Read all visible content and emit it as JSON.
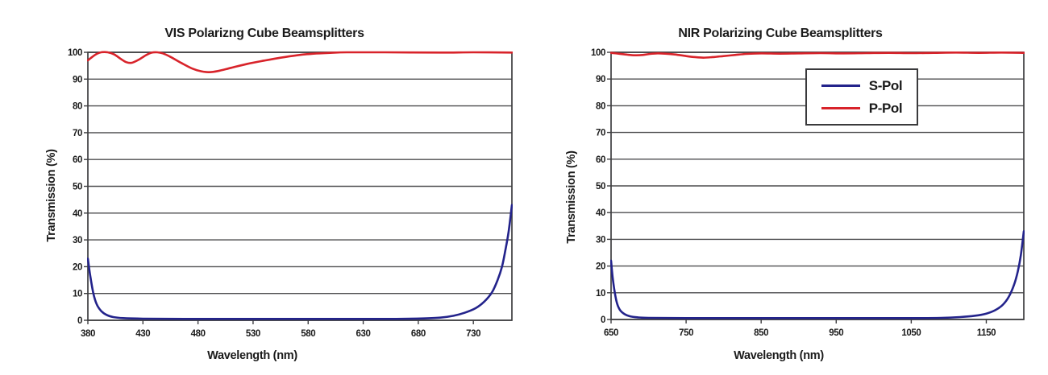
{
  "chart_data": [
    {
      "type": "line",
      "title": "VIS Polarizng Cube Beamsplitters",
      "xlabel": "Wavelength (nm)",
      "ylabel": "Transmission (%)",
      "x_range": [
        380,
        765
      ],
      "y_range": [
        0,
        100
      ],
      "x_ticks": [
        380,
        430,
        480,
        530,
        580,
        630,
        680,
        730
      ],
      "y_ticks": [
        0,
        10,
        20,
        30,
        40,
        50,
        60,
        70,
        80,
        90,
        100
      ],
      "grid": "horizontal-only",
      "series": [
        {
          "name": "S-Pol",
          "color": "#23238b",
          "points": [
            [
              380,
              23
            ],
            [
              382,
              17
            ],
            [
              385,
              10
            ],
            [
              388,
              6
            ],
            [
              392,
              3.5
            ],
            [
              397,
              2
            ],
            [
              403,
              1.2
            ],
            [
              412,
              0.8
            ],
            [
              430,
              0.6
            ],
            [
              470,
              0.5
            ],
            [
              520,
              0.5
            ],
            [
              570,
              0.5
            ],
            [
              620,
              0.5
            ],
            [
              660,
              0.5
            ],
            [
              685,
              0.7
            ],
            [
              700,
              1
            ],
            [
              712,
              1.7
            ],
            [
              722,
              2.8
            ],
            [
              732,
              4.5
            ],
            [
              740,
              7
            ],
            [
              747,
              10.5
            ],
            [
              752,
              15
            ],
            [
              756,
              20
            ],
            [
              759,
              26
            ],
            [
              762,
              33
            ],
            [
              765,
              43
            ]
          ]
        },
        {
          "name": "P-Pol",
          "color": "#d8232a",
          "points": [
            [
              380,
              97
            ],
            [
              384,
              98.3
            ],
            [
              388,
              99.4
            ],
            [
              392,
              100
            ],
            [
              398,
              100
            ],
            [
              404,
              99.2
            ],
            [
              410,
              97.5
            ],
            [
              415,
              96.3
            ],
            [
              420,
              96.1
            ],
            [
              426,
              97.2
            ],
            [
              433,
              99
            ],
            [
              438,
              99.9
            ],
            [
              443,
              100
            ],
            [
              448,
              99.6
            ],
            [
              455,
              98.3
            ],
            [
              465,
              96
            ],
            [
              475,
              93.9
            ],
            [
              483,
              92.9
            ],
            [
              490,
              92.6
            ],
            [
              498,
              93
            ],
            [
              510,
              94.2
            ],
            [
              525,
              95.7
            ],
            [
              540,
              96.9
            ],
            [
              555,
              98
            ],
            [
              570,
              98.9
            ],
            [
              585,
              99.5
            ],
            [
              600,
              99.8
            ],
            [
              615,
              100
            ],
            [
              650,
              100
            ],
            [
              700,
              99.9
            ],
            [
              730,
              100
            ],
            [
              765,
              99.9
            ]
          ]
        }
      ]
    },
    {
      "type": "line",
      "title": "NIR Polarizing Cube Beamsplitters",
      "xlabel": "Wavelength (nm)",
      "ylabel": "Transmission (%)",
      "x_range": [
        650,
        1200
      ],
      "y_range": [
        0,
        100
      ],
      "x_ticks": [
        650,
        750,
        850,
        950,
        1050,
        1150
      ],
      "y_ticks": [
        0,
        10,
        20,
        30,
        40,
        50,
        60,
        70,
        80,
        90,
        100
      ],
      "grid": "horizontal-only",
      "legend": {
        "position": "inside-top-right",
        "items": [
          {
            "label": "S-Pol",
            "color": "#23238b"
          },
          {
            "label": "P-Pol",
            "color": "#d8232a"
          }
        ]
      },
      "series": [
        {
          "name": "S-Pol",
          "color": "#23238b",
          "points": [
            [
              650,
              22
            ],
            [
              652,
              16
            ],
            [
              655,
              10
            ],
            [
              658,
              6
            ],
            [
              662,
              3.5
            ],
            [
              668,
              2
            ],
            [
              675,
              1.2
            ],
            [
              685,
              0.8
            ],
            [
              700,
              0.6
            ],
            [
              750,
              0.5
            ],
            [
              850,
              0.5
            ],
            [
              950,
              0.5
            ],
            [
              1050,
              0.5
            ],
            [
              1090,
              0.6
            ],
            [
              1115,
              0.9
            ],
            [
              1135,
              1.4
            ],
            [
              1150,
              2.2
            ],
            [
              1162,
              3.5
            ],
            [
              1172,
              5.5
            ],
            [
              1180,
              8.5
            ],
            [
              1187,
              13
            ],
            [
              1192,
              18
            ],
            [
              1196,
              24
            ],
            [
              1200,
              33
            ]
          ]
        },
        {
          "name": "P-Pol",
          "color": "#d8232a",
          "points": [
            [
              650,
              99.8
            ],
            [
              660,
              99.5
            ],
            [
              672,
              99.1
            ],
            [
              682,
              98.9
            ],
            [
              692,
              99
            ],
            [
              702,
              99.4
            ],
            [
              712,
              99.6
            ],
            [
              722,
              99.5
            ],
            [
              735,
              99.2
            ],
            [
              750,
              98.6
            ],
            [
              762,
              98.2
            ],
            [
              773,
              98
            ],
            [
              785,
              98.2
            ],
            [
              800,
              98.6
            ],
            [
              815,
              99
            ],
            [
              830,
              99.4
            ],
            [
              850,
              99.6
            ],
            [
              875,
              99.5
            ],
            [
              900,
              99.6
            ],
            [
              930,
              99.7
            ],
            [
              960,
              99.6
            ],
            [
              990,
              99.7
            ],
            [
              1020,
              99.8
            ],
            [
              1050,
              99.7
            ],
            [
              1080,
              99.8
            ],
            [
              1110,
              99.9
            ],
            [
              1140,
              99.8
            ],
            [
              1170,
              99.9
            ],
            [
              1200,
              99.8
            ]
          ]
        }
      ]
    }
  ]
}
